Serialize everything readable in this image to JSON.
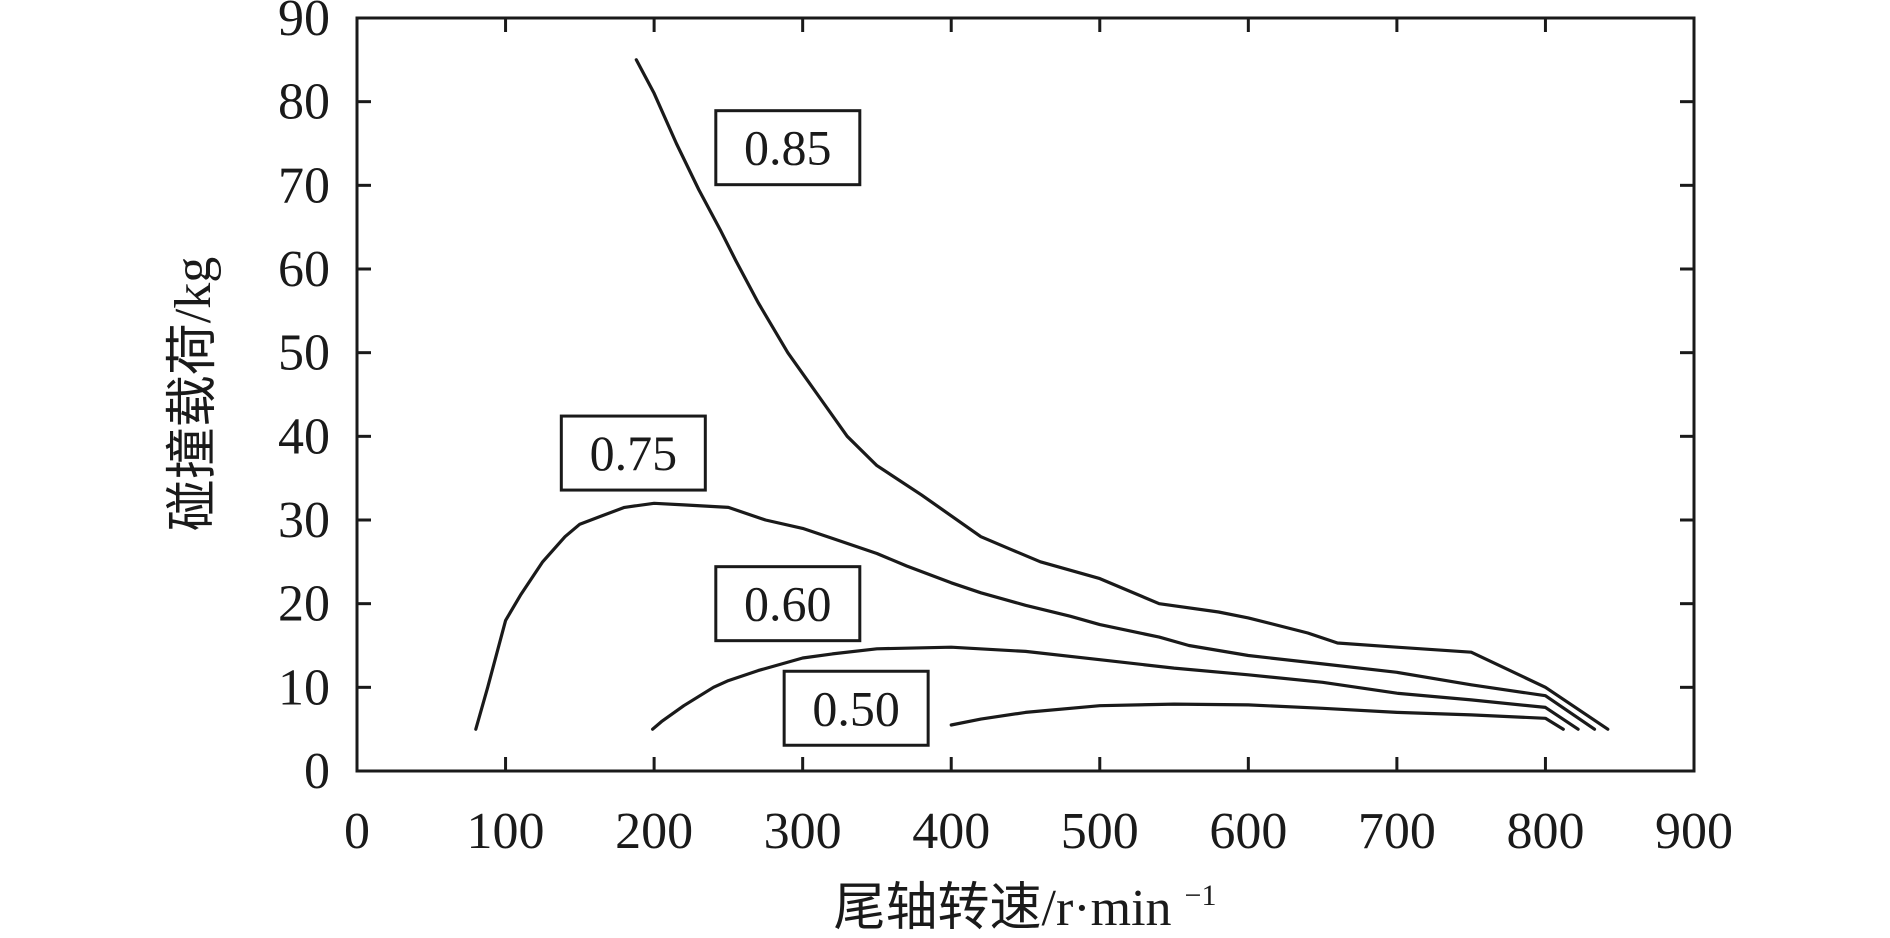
{
  "chart_data": {
    "type": "line",
    "title": "",
    "xlabel": "尾轴转速/r·min",
    "xlabel_sup": "−1",
    "ylabel": "碰撞载荷/kg",
    "xlim": [
      0,
      900
    ],
    "ylim": [
      0,
      90
    ],
    "xticks": [
      0,
      100,
      200,
      300,
      400,
      500,
      600,
      700,
      800,
      900
    ],
    "yticks": [
      0,
      10,
      20,
      30,
      40,
      50,
      60,
      70,
      80,
      90
    ],
    "grid": false,
    "legend": "inline-labels",
    "series": [
      {
        "name": "0.85",
        "x": [
          188,
          200,
          215,
          230,
          245,
          255,
          270,
          290,
          310,
          330,
          350,
          380,
          400,
          420,
          440,
          460,
          500,
          540,
          580,
          600,
          640,
          660,
          700,
          750,
          800,
          842
        ],
        "y": [
          85,
          81,
          75,
          69.5,
          64.5,
          61,
          56,
          50,
          45,
          40,
          36.5,
          33,
          30.5,
          28,
          26.5,
          25,
          23,
          20,
          19,
          18.3,
          16.5,
          15.3,
          14.8,
          14.2,
          10,
          5
        ],
        "label": {
          "text": "0.85",
          "x": 290,
          "y": 74.5
        }
      },
      {
        "name": "0.75",
        "x": [
          80,
          88,
          100,
          110,
          125,
          140,
          150,
          165,
          180,
          200,
          220,
          250,
          275,
          300,
          320,
          350,
          370,
          400,
          420,
          450,
          480,
          500,
          540,
          560,
          600,
          650,
          700,
          750,
          800,
          833
        ],
        "y": [
          5,
          10,
          18,
          21,
          25,
          28,
          29.5,
          30.5,
          31.5,
          32,
          31.8,
          31.5,
          30,
          29,
          27.8,
          26,
          24.5,
          22.5,
          21.3,
          19.8,
          18.5,
          17.5,
          16,
          15,
          13.8,
          12.8,
          11.8,
          10.3,
          9,
          5
        ]
      },
      {
        "name": "0.60",
        "x": [
          199,
          205,
          220,
          240,
          250,
          270,
          300,
          320,
          350,
          400,
          450,
          500,
          550,
          600,
          650,
          700,
          750,
          800,
          822
        ],
        "y": [
          5,
          5.9,
          7.8,
          10,
          10.8,
          12,
          13.5,
          14,
          14.6,
          14.8,
          14.3,
          13.3,
          12.3,
          11.5,
          10.6,
          9.3,
          8.5,
          7.6,
          5
        ]
      },
      {
        "name": "0.50",
        "x": [
          400,
          420,
          450,
          500,
          550,
          600,
          650,
          700,
          750,
          800,
          812
        ],
        "y": [
          5.5,
          6.2,
          7,
          7.8,
          8,
          7.9,
          7.5,
          7,
          6.7,
          6.3,
          5
        ]
      }
    ],
    "inline_labels": [
      {
        "text": "0.85",
        "x": 290,
        "y": 74.5
      },
      {
        "text": "0.75",
        "x": 186,
        "y": 38
      },
      {
        "text": "0.60",
        "x": 290,
        "y": 20
      },
      {
        "text": "0.50",
        "x": 336,
        "y": 7.5
      }
    ],
    "colors": {
      "axis": "#1a1a1a",
      "line": "#1a1a1a",
      "background": "#ffffff"
    }
  }
}
